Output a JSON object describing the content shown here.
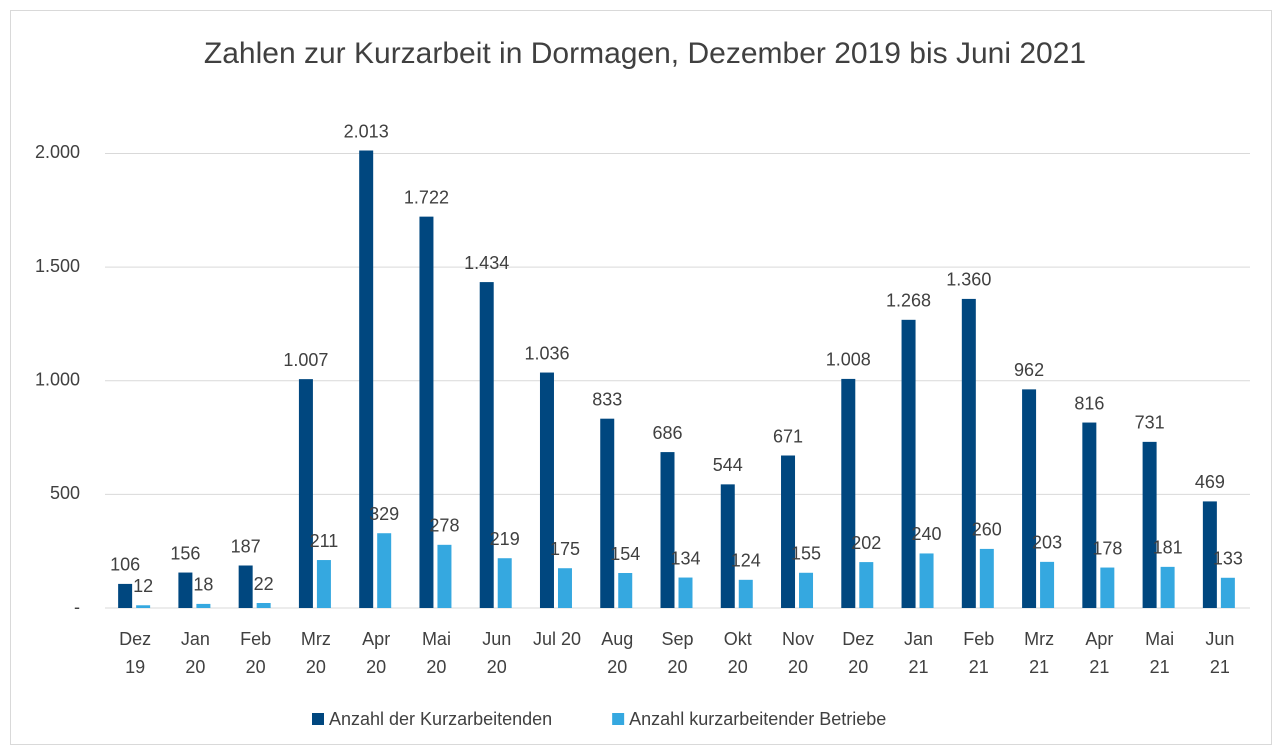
{
  "chart_data": {
    "type": "bar",
    "title": "Zahlen zur Kurzarbeit in Dormagen, Dezember 2019 bis Juni 2021",
    "categories": [
      "Dez 19",
      "Jan 20",
      "Feb 20",
      "Mrz 20",
      "Apr 20",
      "Mai 20",
      "Jun 20",
      "Jul 20",
      "Aug 20",
      "Sep 20",
      "Okt 20",
      "Nov 20",
      "Dez 20",
      "Jan 21",
      "Feb 21",
      "Mrz 21",
      "Apr 21",
      "Mai 21",
      "Jun 21"
    ],
    "series": [
      {
        "name": "Anzahl der Kurzarbeitenden",
        "color": "#00477f",
        "values": [
          106,
          156,
          187,
          1007,
          2013,
          1722,
          1434,
          1036,
          833,
          686,
          544,
          671,
          1008,
          1268,
          1360,
          962,
          816,
          731,
          469
        ],
        "value_labels": [
          "106",
          "156",
          "187",
          "1.007",
          "2.013",
          "1.722",
          "1.434",
          "1.036",
          "833",
          "686",
          "544",
          "671",
          "1.008",
          "1.268",
          "1.360",
          "962",
          "816",
          "731",
          "469"
        ]
      },
      {
        "name": "Anzahl kurzarbeitender Betriebe",
        "color": "#35a8e0",
        "values": [
          12,
          18,
          22,
          211,
          329,
          278,
          219,
          175,
          154,
          134,
          124,
          155,
          202,
          240,
          260,
          203,
          178,
          181,
          133
        ]
      }
    ],
    "ylim": [
      0,
      2200
    ],
    "yticks": [
      {
        "value": 0,
        "label": "-"
      },
      500,
      {
        "value": 1000,
        "label": "1.000"
      },
      {
        "value": 1500,
        "label": "1.500"
      },
      {
        "value": 2000,
        "label": "2.000"
      }
    ],
    "grid": true,
    "legend": "bottom"
  }
}
